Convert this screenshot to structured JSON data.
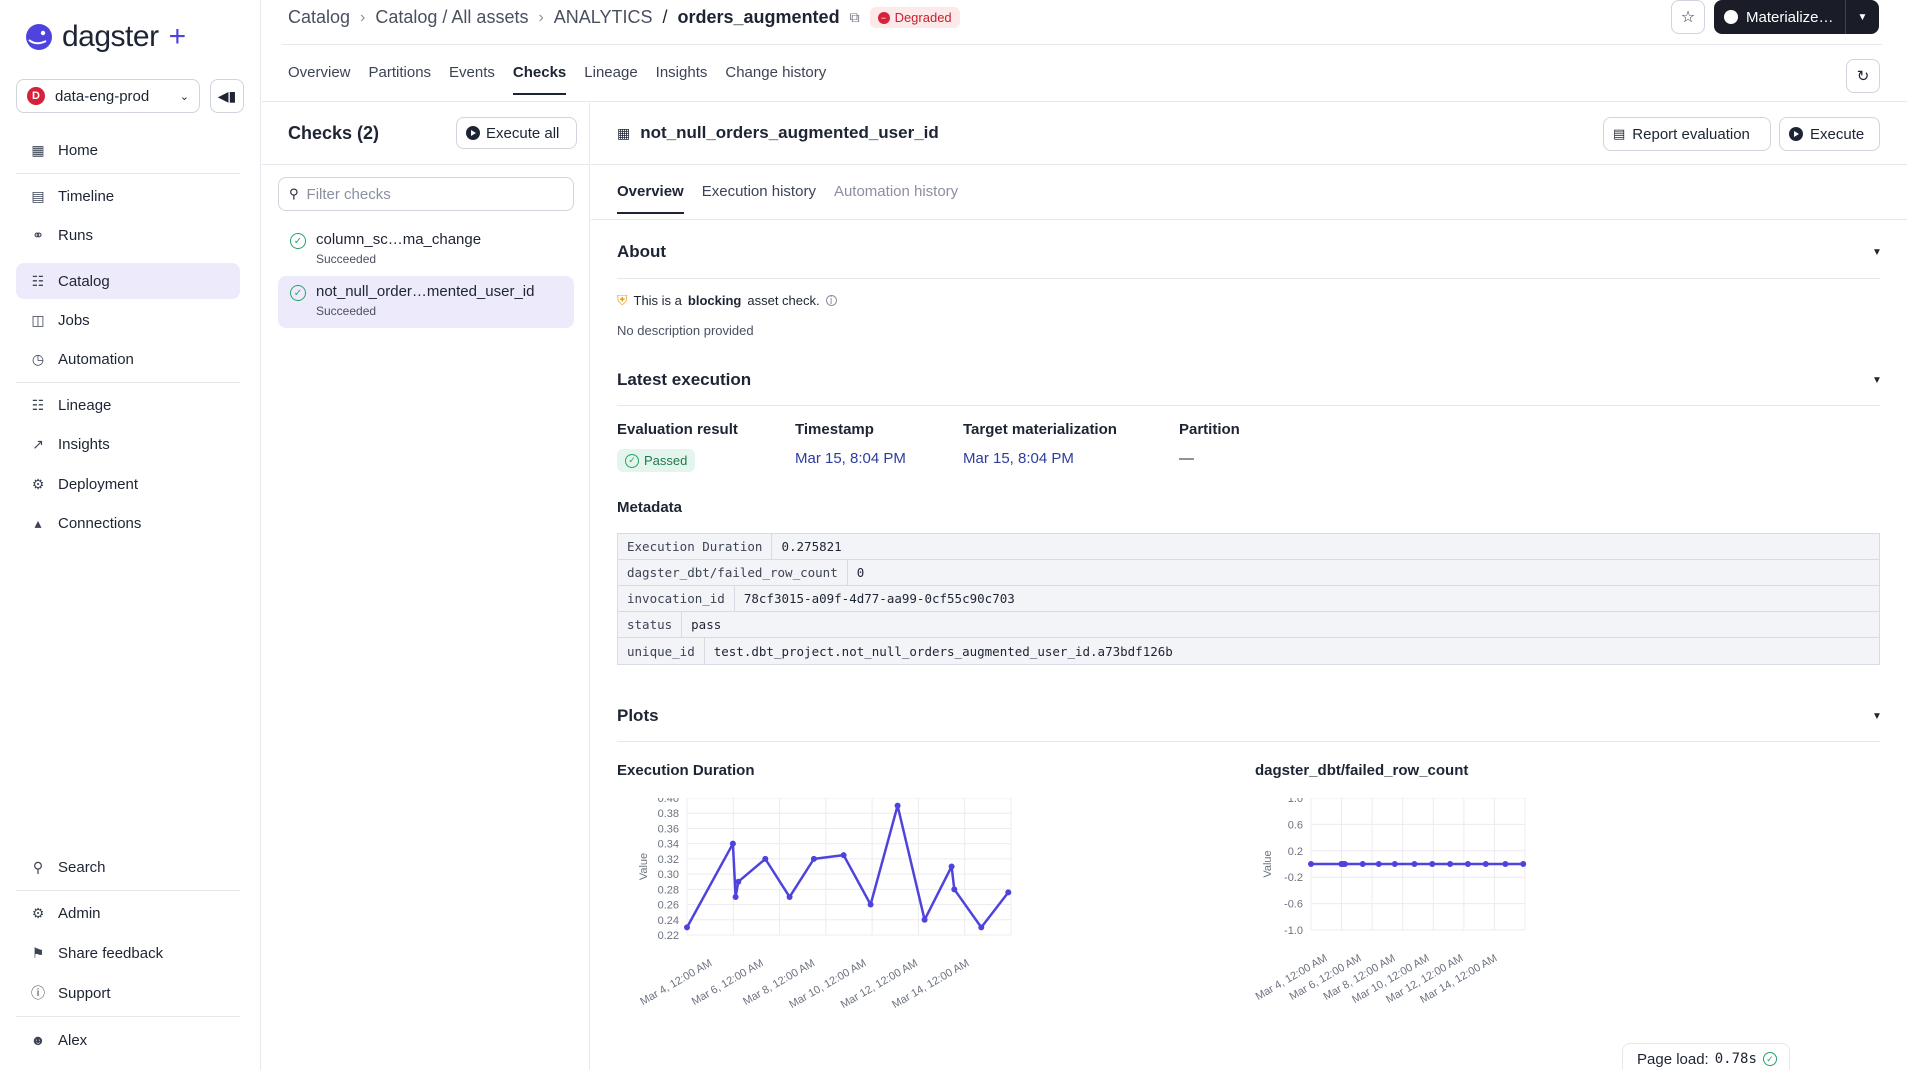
{
  "brand": {
    "name": "dagster",
    "plus": "+"
  },
  "deployment": {
    "badge": "D",
    "name": "data-eng-prod"
  },
  "nav": {
    "home": "Home",
    "timeline": "Timeline",
    "runs": "Runs",
    "catalog": "Catalog",
    "jobs": "Jobs",
    "automation": "Automation",
    "lineage": "Lineage",
    "insights": "Insights",
    "deployment": "Deployment",
    "connections": "Connections",
    "search": "Search",
    "admin": "Admin",
    "share_feedback": "Share feedback",
    "support": "Support",
    "user": "Alex"
  },
  "header": {
    "breadcrumb": [
      "Catalog",
      "Catalog / All assets",
      "ANALYTICS",
      "orders_augmented"
    ],
    "breadcrumb_slash": "/",
    "status_badge": "Degraded",
    "materialize_label": "Materialize…",
    "tabs": [
      "Overview",
      "Partitions",
      "Events",
      "Checks",
      "Lineage",
      "Insights",
      "Change history"
    ]
  },
  "checks": {
    "title": "Checks (2)",
    "execute_all": "Execute all",
    "filter_placeholder": "Filter checks",
    "items": [
      {
        "name": "column_sc…ma_change",
        "status": "Succeeded"
      },
      {
        "name": "not_null_order…mented_user_id",
        "status": "Succeeded"
      }
    ]
  },
  "detail": {
    "title": "not_null_orders_augmented_user_id",
    "report_evaluation": "Report evaluation",
    "execute": "Execute",
    "subtabs": [
      "Overview",
      "Execution history",
      "Automation history"
    ],
    "about": {
      "heading": "About",
      "text_pre": "This is a",
      "text_bold": "blocking",
      "text_post": "asset check.",
      "no_description": "No description provided"
    },
    "latest": {
      "heading": "Latest execution",
      "eval_label": "Evaluation result",
      "eval_value": "Passed",
      "timestamp_label": "Timestamp",
      "timestamp_value": "Mar 15, 8:04 PM",
      "target_label": "Target materialization",
      "target_value": "Mar 15, 8:04 PM",
      "partition_label": "Partition",
      "partition_value": "—"
    },
    "metadata": {
      "heading": "Metadata",
      "rows": [
        {
          "key": "Execution Duration",
          "value": "0.275821"
        },
        {
          "key": "dagster_dbt/failed_row_count",
          "value": "0"
        },
        {
          "key": "invocation_id",
          "value": "78cf3015-a09f-4d77-aa99-0cf55c90c703"
        },
        {
          "key": "status",
          "value": "pass"
        },
        {
          "key": "unique_id",
          "value": "test.dbt_project.not_null_orders_augmented_user_id.a73bdf126b"
        }
      ]
    },
    "plots": {
      "heading": "Plots"
    }
  },
  "page_load": {
    "label": "Page load:",
    "value": "0.78s"
  },
  "colors": {
    "accent": "#4f43dd",
    "line": "#4f43dd",
    "success": "#27a36a",
    "danger": "#d6213a"
  },
  "chart_data": [
    {
      "type": "line",
      "title": "Execution Duration",
      "ylabel": "Value",
      "ylim": [
        0.22,
        0.4
      ],
      "yticks": [
        "0.40",
        "0.38",
        "0.36",
        "0.34",
        "0.32",
        "0.30",
        "0.28",
        "0.26",
        "0.24",
        "0.22"
      ],
      "xtick_labels": [
        "Mar 4, 12:00 AM",
        "Mar 6, 12:00 AM",
        "Mar 8, 12:00 AM",
        "Mar 10, 12:00 AM",
        "Mar 12, 12:00 AM",
        "Mar 14, 12:00 AM"
      ],
      "xlim": [
        4,
        16
      ],
      "x": [
        4.0,
        5.7,
        5.8,
        5.9,
        6.9,
        7.8,
        8.7,
        9.8,
        10.8,
        11.8,
        12.8,
        13.8,
        13.9,
        14.9,
        15.9
      ],
      "values": [
        0.23,
        0.34,
        0.27,
        0.29,
        0.32,
        0.27,
        0.32,
        0.325,
        0.26,
        0.39,
        0.24,
        0.31,
        0.28,
        0.23,
        0.276
      ]
    },
    {
      "type": "line",
      "title": "dagster_dbt/failed_row_count",
      "ylabel": "Value",
      "ylim": [
        -1.0,
        1.0
      ],
      "yticks": [
        "1.0",
        "0.6",
        "0.2",
        "-0.2",
        "-0.6",
        "-1.0"
      ],
      "xtick_labels": [
        "Mar 4, 12:00 AM",
        "Mar 6, 12:00 AM",
        "Mar 8, 12:00 AM",
        "Mar 10, 12:00 AM",
        "Mar 12, 12:00 AM",
        "Mar 14, 12:00 AM"
      ],
      "xlim": [
        4,
        16
      ],
      "x": [
        4.0,
        5.7,
        5.8,
        5.9,
        6.9,
        7.8,
        8.7,
        9.8,
        10.8,
        11.8,
        12.8,
        13.8,
        14.9,
        15.9
      ],
      "values": [
        0,
        0,
        0,
        0,
        0,
        0,
        0,
        0,
        0,
        0,
        0,
        0,
        0,
        0
      ]
    }
  ]
}
